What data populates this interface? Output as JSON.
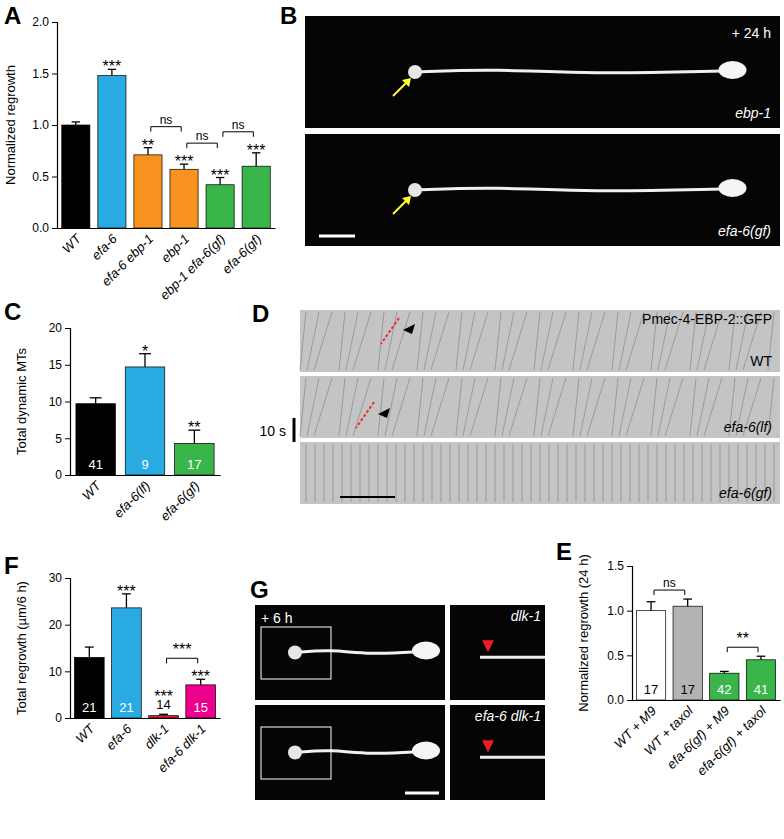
{
  "chart_data": [
    {
      "type": "bar",
      "title": "A",
      "y_label": "Normalized regrowth",
      "categories": [
        "WT",
        "efa-6",
        "efa-6 ebp-1",
        "ebp-1",
        "ebp-1 efa-6(gf)",
        "efa-6(gf)"
      ],
      "values": [
        1.0,
        1.48,
        0.71,
        0.57,
        0.42,
        0.6
      ],
      "errors": [
        0.03,
        0.06,
        0.07,
        0.05,
        0.07,
        0.13
      ],
      "colors": [
        "#000000",
        "#29abe2",
        "#f7931e",
        "#f7931e",
        "#39b54a",
        "#39b54a"
      ],
      "annotations": [
        null,
        "***",
        "**",
        "***",
        "***",
        "***"
      ],
      "comparisons": [
        {
          "from": "efa-6 ebp-1",
          "to": "ebp-1",
          "label": "ns"
        },
        {
          "from": "ebp-1",
          "to": "ebp-1 efa-6(gf)",
          "label": "ns"
        },
        {
          "from": "ebp-1 efa-6(gf)",
          "to": "efa-6(gf)",
          "label": "ns"
        }
      ],
      "ylim": [
        0,
        2
      ],
      "yticks": [
        {
          "value": 0,
          "label": "0.0"
        },
        {
          "value": 0.5,
          "label": "0.5"
        },
        {
          "value": 1,
          "label": "1.0"
        },
        {
          "value": 1.5,
          "label": "1.5"
        },
        {
          "value": 2,
          "label": "2.0"
        }
      ]
    },
    {
      "type": "image",
      "title": "B",
      "annotations": [
        "+ 24 h",
        "ebp-1",
        "efa-6(gf)"
      ]
    },
    {
      "type": "bar",
      "title": "C",
      "y_label": "Total dynamic MTs",
      "categories": [
        "WT",
        "efa-6(lf)",
        "efa-6(gf)"
      ],
      "values": [
        9.7,
        14.7,
        4.3
      ],
      "errors": [
        0.8,
        1.8,
        1.8
      ],
      "n": [
        41,
        9,
        17
      ],
      "colors": [
        "#000000",
        "#29abe2",
        "#39b54a"
      ],
      "annotations": [
        null,
        "*",
        "**"
      ],
      "ylim": [
        0,
        20
      ],
      "yticks": [
        0,
        5,
        10,
        15,
        20
      ]
    },
    {
      "type": "image",
      "title": "D",
      "annotations": [
        "Pmec-4-EBP-2::GFP",
        "WT",
        "efa-6(lf)",
        "efa-6(gf)",
        "10 s"
      ]
    },
    {
      "type": "bar",
      "title": "E",
      "y_label": "Normalized regrowth (24 h)",
      "categories": [
        "WT + M9",
        "WT + taxol",
        "efa-6(gf) + M9",
        "efa-6(gf) + taxol"
      ],
      "values": [
        1.0,
        1.05,
        0.3,
        0.45
      ],
      "errors": [
        0.1,
        0.08,
        0.02,
        0.04
      ],
      "n": [
        17,
        17,
        42,
        41
      ],
      "colors": [
        "#ffffff",
        "#b3b3b3",
        "#39b54a",
        "#39b54a"
      ],
      "comparisons": [
        {
          "from": "WT + M9",
          "to": "WT + taxol",
          "label": "ns"
        },
        {
          "from": "efa-6(gf) + M9",
          "to": "efa-6(gf) + taxol",
          "label": "**"
        }
      ],
      "ylim": [
        0,
        1.5
      ],
      "yticks": [
        {
          "value": 0,
          "label": "0.0"
        },
        {
          "value": 0.5,
          "label": "0.5"
        },
        {
          "value": 1,
          "label": "1.0"
        },
        {
          "value": 1.5,
          "label": "1.5"
        }
      ]
    },
    {
      "type": "bar",
      "title": "F",
      "y_label": "Total regrowth (µm/6 h)",
      "categories": [
        "WT",
        "efa-6",
        "dlk-1",
        "efa-6 dlk-1"
      ],
      "values": [
        13,
        23.6,
        0.5,
        7.1
      ],
      "errors": [
        2.2,
        3.0,
        0.3,
        1.2
      ],
      "n": [
        21,
        21,
        14,
        15
      ],
      "colors": [
        "#000000",
        "#29abe2",
        "#ed1c24",
        "#ec008c"
      ],
      "annotations": [
        null,
        "***",
        "***",
        "***"
      ],
      "comparisons": [
        {
          "from": "dlk-1",
          "to": "efa-6 dlk-1",
          "label": "***"
        }
      ],
      "ylim": [
        0,
        30
      ],
      "yticks": [
        0,
        10,
        20,
        30
      ]
    },
    {
      "type": "image",
      "title": "G",
      "annotations": [
        "+ 6 h",
        "dlk-1",
        "efa-6 dlk-1"
      ]
    }
  ]
}
